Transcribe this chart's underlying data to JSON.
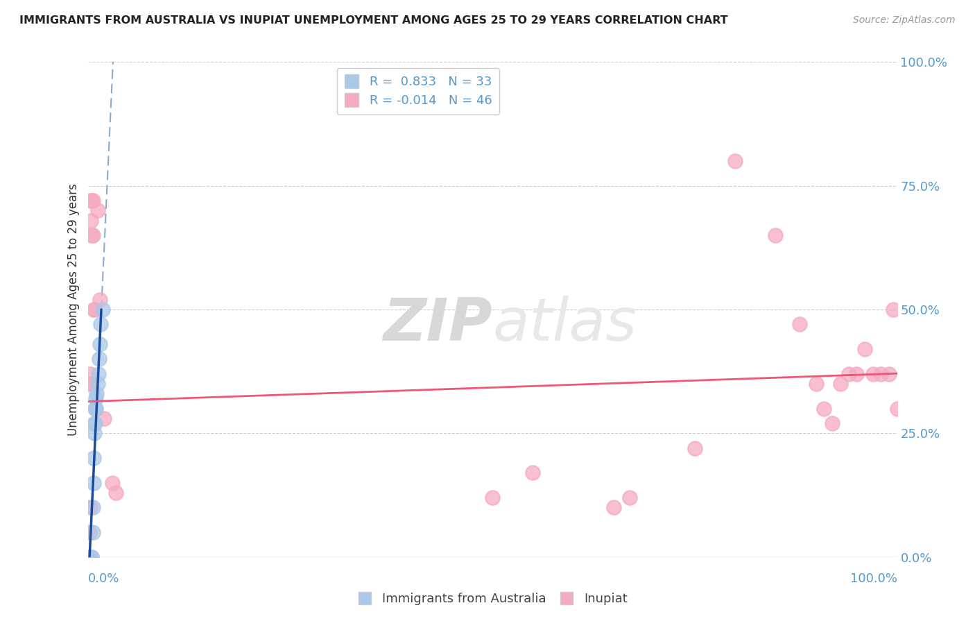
{
  "title": "IMMIGRANTS FROM AUSTRALIA VS INUPIAT UNEMPLOYMENT AMONG AGES 25 TO 29 YEARS CORRELATION CHART",
  "source": "Source: ZipAtlas.com",
  "ylabel": "Unemployment Among Ages 25 to 29 years",
  "xlim": [
    0,
    1
  ],
  "ylim": [
    0,
    1
  ],
  "yticks": [
    0.0,
    0.25,
    0.5,
    0.75,
    1.0
  ],
  "yticklabels": [
    "0.0%",
    "25.0%",
    "50.0%",
    "75.0%",
    "100.0%"
  ],
  "blue_R": 0.833,
  "blue_N": 33,
  "pink_R": -0.014,
  "pink_N": 46,
  "blue_color": "#aac8e8",
  "pink_color": "#f5aabf",
  "blue_line_color": "#1a4a99",
  "pink_line_color": "#ee5577",
  "dash_line_color": "#88aacc",
  "blue_dots": [
    [
      0.001,
      0.0
    ],
    [
      0.001,
      0.0
    ],
    [
      0.001,
      0.0
    ],
    [
      0.001,
      0.0
    ],
    [
      0.002,
      0.0
    ],
    [
      0.002,
      0.0
    ],
    [
      0.002,
      0.0
    ],
    [
      0.002,
      0.0
    ],
    [
      0.002,
      0.0
    ],
    [
      0.003,
      0.0
    ],
    [
      0.003,
      0.0
    ],
    [
      0.003,
      0.0
    ],
    [
      0.004,
      0.0
    ],
    [
      0.004,
      0.0
    ],
    [
      0.005,
      0.0
    ],
    [
      0.005,
      0.0
    ],
    [
      0.006,
      0.05
    ],
    [
      0.006,
      0.1
    ],
    [
      0.007,
      0.15
    ],
    [
      0.007,
      0.2
    ],
    [
      0.008,
      0.25
    ],
    [
      0.008,
      0.27
    ],
    [
      0.009,
      0.27
    ],
    [
      0.009,
      0.3
    ],
    [
      0.01,
      0.3
    ],
    [
      0.01,
      0.32
    ],
    [
      0.011,
      0.33
    ],
    [
      0.012,
      0.35
    ],
    [
      0.013,
      0.37
    ],
    [
      0.014,
      0.4
    ],
    [
      0.015,
      0.43
    ],
    [
      0.016,
      0.47
    ],
    [
      0.018,
      0.5
    ]
  ],
  "pink_dots": [
    [
      0.001,
      0.0
    ],
    [
      0.001,
      0.0
    ],
    [
      0.001,
      0.0
    ],
    [
      0.002,
      0.0
    ],
    [
      0.002,
      0.05
    ],
    [
      0.002,
      0.35
    ],
    [
      0.003,
      0.0
    ],
    [
      0.003,
      0.1
    ],
    [
      0.003,
      0.35
    ],
    [
      0.003,
      0.37
    ],
    [
      0.004,
      0.0
    ],
    [
      0.004,
      0.68
    ],
    [
      0.004,
      0.72
    ],
    [
      0.005,
      0.0
    ],
    [
      0.005,
      0.65
    ],
    [
      0.005,
      0.72
    ],
    [
      0.006,
      0.65
    ],
    [
      0.006,
      0.72
    ],
    [
      0.007,
      0.5
    ],
    [
      0.008,
      0.5
    ],
    [
      0.01,
      0.3
    ],
    [
      0.012,
      0.7
    ],
    [
      0.015,
      0.52
    ],
    [
      0.02,
      0.28
    ],
    [
      0.03,
      0.15
    ],
    [
      0.035,
      0.13
    ],
    [
      0.5,
      0.12
    ],
    [
      0.55,
      0.17
    ],
    [
      0.65,
      0.1
    ],
    [
      0.67,
      0.12
    ],
    [
      0.75,
      0.22
    ],
    [
      0.8,
      0.8
    ],
    [
      0.85,
      0.65
    ],
    [
      0.88,
      0.47
    ],
    [
      0.9,
      0.35
    ],
    [
      0.91,
      0.3
    ],
    [
      0.92,
      0.27
    ],
    [
      0.93,
      0.35
    ],
    [
      0.94,
      0.37
    ],
    [
      0.95,
      0.37
    ],
    [
      0.96,
      0.42
    ],
    [
      0.97,
      0.37
    ],
    [
      0.98,
      0.37
    ],
    [
      0.99,
      0.37
    ],
    [
      0.995,
      0.5
    ],
    [
      1.0,
      0.3
    ]
  ],
  "watermark_zip": "ZIP",
  "watermark_atlas": "atlas",
  "background_color": "#ffffff",
  "grid_color": "#cccccc"
}
